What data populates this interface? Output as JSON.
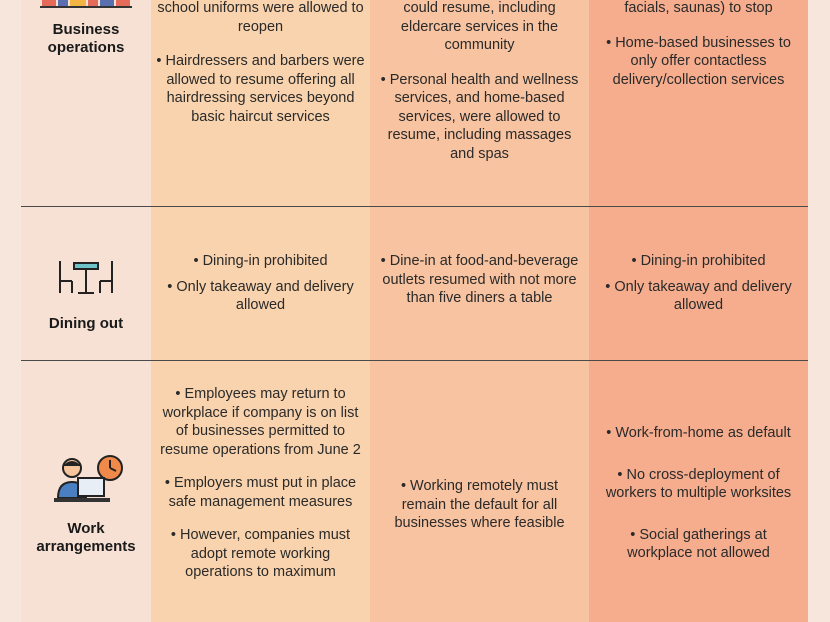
{
  "rows": {
    "business": {
      "label": "Business operations",
      "phase1": [
        "school uniforms were allowed to reopen",
        "• Hairdressers and barbers were allowed to resume offering all hairdressing services beyond basic haircut services"
      ],
      "phase2": [
        "could resume, including eldercare services in the community",
        "• Personal health and wellness services, and home-based services, were allowed to resume, including massages and spas"
      ],
      "phase3": [
        "facials, saunas) to stop",
        "• Home-based businesses to only offer contactless delivery/collection services"
      ]
    },
    "dining": {
      "label": "Dining out",
      "phase1": [
        "• Dining-in prohibited",
        "• Only takeaway and delivery allowed"
      ],
      "phase2": [
        "• Dine-in at food-and-beverage outlets resumed with not more than five diners a table"
      ],
      "phase3": [
        "• Dining-in prohibited",
        "• Only takeaway and delivery allowed"
      ]
    },
    "work": {
      "label": "Work arrangements",
      "phase1": [
        "• Employees may return to workplace if company is on list of businesses permitted to resume operations from June 2",
        "• Employers must  put in place safe management measures",
        "• However, companies must adopt remote working operations to maximum"
      ],
      "phase2": [
        "• Working remotely must remain the default for all businesses where feasible"
      ],
      "phase3": [
        "• Work-from-home as default",
        "• No cross-deployment of workers to multiple worksites",
        "• Social gatherings at workplace not allowed"
      ]
    }
  },
  "colors": {
    "label_col": "#f7e0d4",
    "phase1_col": "#f9d3ad",
    "phase2_col": "#f8c3a0",
    "phase3_col": "#f5ad8e",
    "divider": "#4a4a4a"
  },
  "icons": {
    "business": "shop-shelves-icon",
    "dining": "dining-table-icon",
    "work": "person-at-computer-clock-icon"
  }
}
